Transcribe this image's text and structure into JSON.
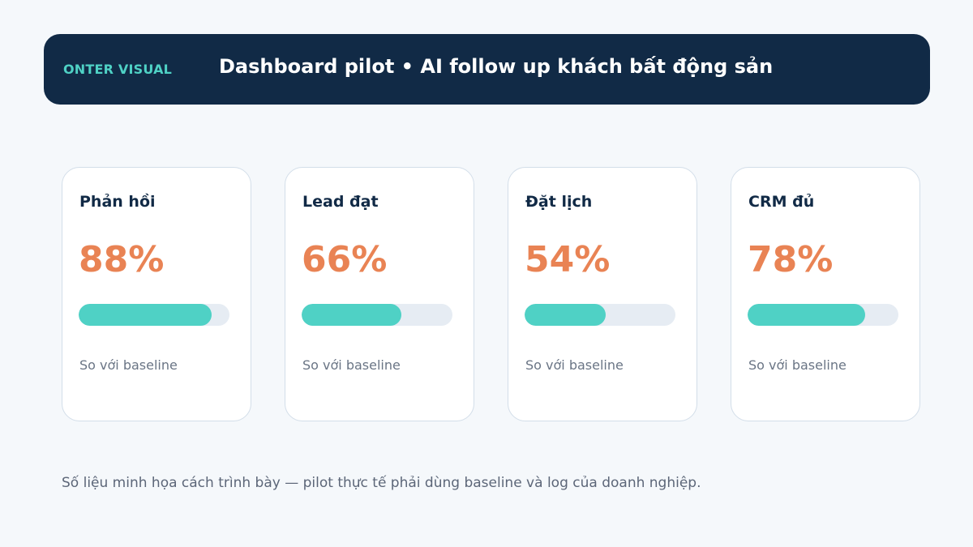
{
  "header": {
    "brand": "ONTER VISUAL",
    "title": "Dashboard pilot • AI follow up khách bất động sản"
  },
  "metrics": [
    {
      "label": "Phản hồi",
      "value": "88%",
      "progress": 0.88,
      "caption": "So với baseline"
    },
    {
      "label": "Lead đạt",
      "value": "66%",
      "progress": 0.66,
      "caption": "So với baseline"
    },
    {
      "label": "Đặt lịch",
      "value": "54%",
      "progress": 0.54,
      "caption": "So với baseline"
    },
    {
      "label": "CRM đủ",
      "value": "78%",
      "progress": 0.78,
      "caption": "So với baseline"
    }
  ],
  "footnote": "Số liệu minh họa cách trình bày — pilot thực tế phải dùng baseline và log của doanh nghiệp.",
  "colors": {
    "header_bg": "#112a46",
    "brand": "#4fd1c5",
    "value": "#e98354",
    "progress_fill": "#4fd1c5",
    "progress_track": "#e6ecf3"
  }
}
